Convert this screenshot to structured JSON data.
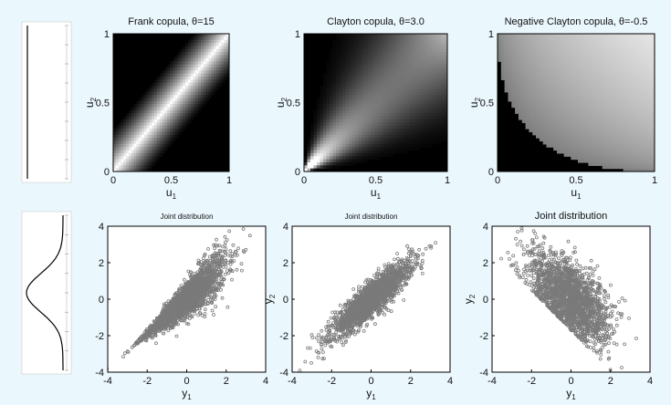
{
  "chart_data": [
    {
      "type": "heatmap",
      "title": "Frank copula, θ=15",
      "xlabel": "u1",
      "ylabel": "u2",
      "xlim": [
        0,
        1
      ],
      "ylim": [
        0,
        1
      ],
      "xticks": [
        "0",
        "0.5",
        "1"
      ],
      "yticks": [
        "0",
        "0.5",
        "1"
      ],
      "copula": "frank",
      "theta": 15,
      "colormap": "gray"
    },
    {
      "type": "heatmap",
      "title": "Clayton copula, θ=3.0",
      "xlabel": "u1",
      "ylabel": "u2",
      "xlim": [
        0,
        1
      ],
      "ylim": [
        0,
        1
      ],
      "xticks": [
        "0",
        "0.5",
        "1"
      ],
      "yticks": [
        "0",
        "0.5",
        "1"
      ],
      "copula": "clayton",
      "theta": 3.0,
      "colormap": "gray"
    },
    {
      "type": "heatmap",
      "title": "Negative Clayton copula, θ=-0.5",
      "xlabel": "u1",
      "ylabel": "u2",
      "xlim": [
        0,
        1
      ],
      "ylim": [
        0,
        1
      ],
      "xticks": [
        "0",
        "0.5",
        "1"
      ],
      "yticks": [
        "0",
        "0.5",
        "1"
      ],
      "copula": "clayton",
      "theta": -0.5,
      "colormap": "gray"
    },
    {
      "type": "scatter",
      "title": "Joint distribution",
      "xlabel": "y1",
      "ylabel": "",
      "xlim": [
        -4,
        4
      ],
      "ylim": [
        -4,
        4
      ],
      "xticks": [
        "-4",
        "-2",
        "0",
        "2",
        "4"
      ],
      "yticks": [
        "-4",
        "-2",
        "0",
        "2",
        "4"
      ],
      "n_points": 2000,
      "pattern": "lower-tail dependence, fan opening to upper right",
      "marker_color": "#7a7a7a"
    },
    {
      "type": "scatter",
      "title": "Joint distribution",
      "xlabel": "y1",
      "ylabel": "y2",
      "xlim": [
        -4,
        4
      ],
      "ylim": [
        -4,
        4
      ],
      "xticks": [
        "-4",
        "-2",
        "0",
        "2",
        "4"
      ],
      "yticks": [
        "-4",
        "-2",
        "0",
        "2",
        "4"
      ],
      "n_points": 2000,
      "pattern": "strong positive linear correlation",
      "marker_color": "#7a7a7a"
    },
    {
      "type": "scatter",
      "title": "Joint distribution",
      "xlabel": "y1",
      "ylabel": "y2",
      "xlim": [
        -4,
        4
      ],
      "ylim": [
        -4,
        4
      ],
      "xticks": [
        "-4",
        "-2",
        "0",
        "2",
        "4"
      ],
      "yticks": [
        "-4",
        "-2",
        "0",
        "2",
        "4"
      ],
      "n_points": 2000,
      "pattern": "negative dependence, truncated below anti-diagonal",
      "marker_color": "#7a7a7a"
    }
  ],
  "side_panels": [
    {
      "type": "line",
      "shape": "flat vertical line"
    },
    {
      "type": "line",
      "shape": "bell curve (normal density)"
    }
  ]
}
